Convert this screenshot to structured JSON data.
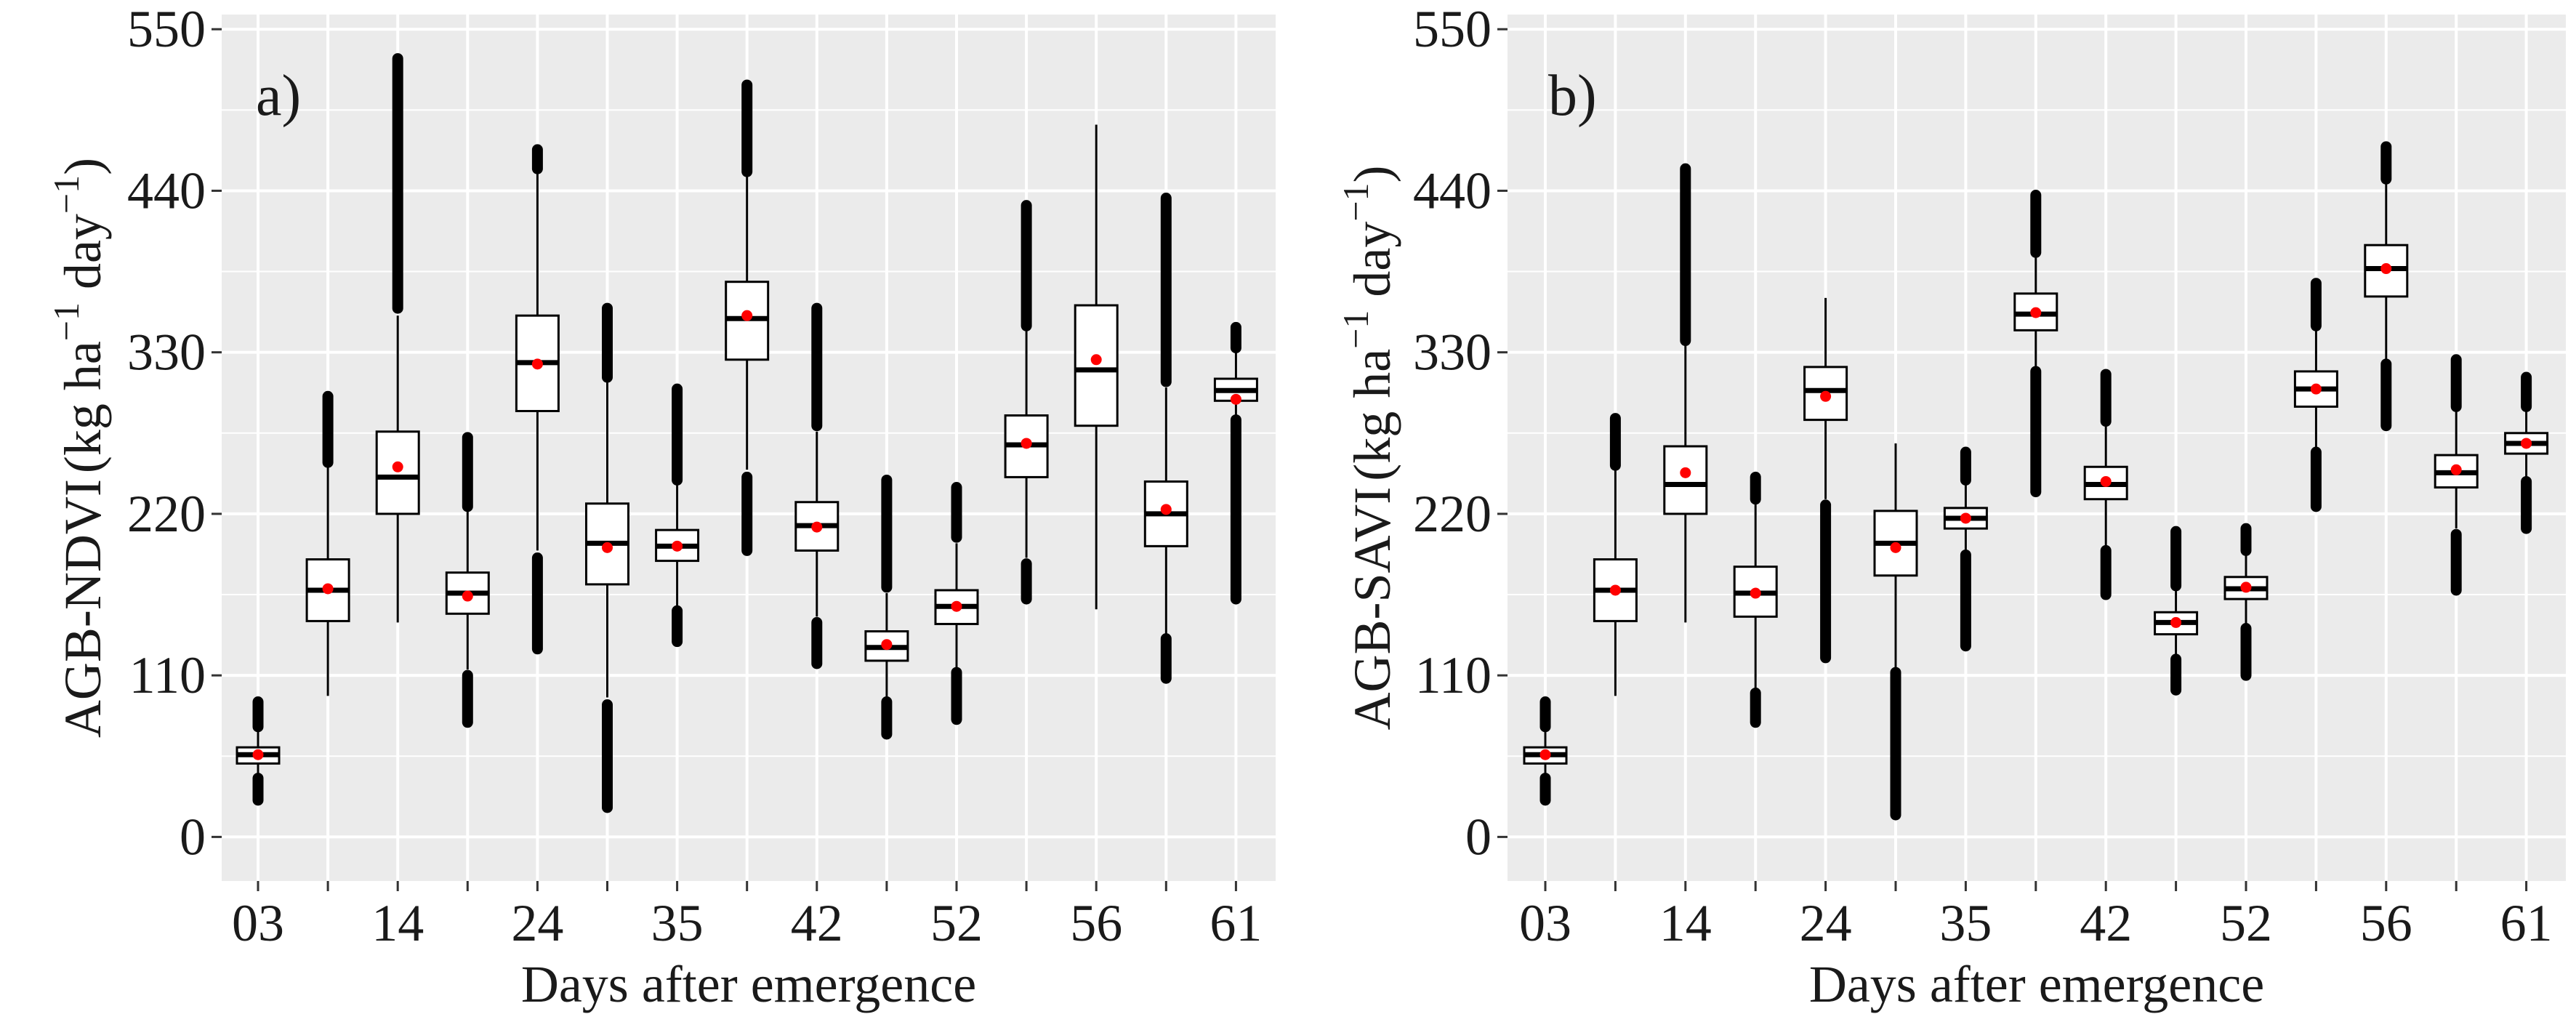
{
  "figure": {
    "xlabel": "Days after emergence",
    "ylabel_unit": {
      "open": "(kg ha",
      "sup1": "−1",
      "mid": " day",
      "sup2": "−1",
      "close": ")"
    }
  },
  "colors": {
    "panel_bg": "#ebebeb",
    "grid": "#ffffff",
    "box": "#000000",
    "mean_point": "#ff0000",
    "text": "#1a1a1a"
  },
  "chart_data": [
    {
      "type": "boxplot",
      "panel_label": "a)",
      "ylabel": "AGB-NDVI",
      "ylim": [
        -30,
        560
      ],
      "yticks": [
        0,
        110,
        220,
        330,
        440,
        550
      ],
      "xtick_labels": [
        "03",
        "",
        "14",
        "",
        "24",
        "",
        "35",
        "",
        "42",
        "",
        "52",
        "",
        "56",
        "",
        "61"
      ],
      "grid": true,
      "boxes": [
        {
          "q1": 50,
          "median": 56,
          "q3": 61,
          "whisker_low": 42,
          "whisker_high": 72,
          "mean": 56,
          "outliers_low": [
            25,
            40
          ],
          "outliers_high": [
            75,
            92
          ]
        },
        {
          "q1": 147,
          "median": 168,
          "q3": 189,
          "whisker_low": 96,
          "whisker_high": 252,
          "mean": 169,
          "outliers_low": [],
          "outliers_high": [
            255,
            300
          ]
        },
        {
          "q1": 220,
          "median": 245,
          "q3": 276,
          "whisker_low": 146,
          "whisker_high": 355,
          "mean": 252,
          "outliers_low": [],
          "outliers_high": [
            360,
            530
          ]
        },
        {
          "q1": 152,
          "median": 166,
          "q3": 180,
          "whisker_low": 114,
          "whisker_high": 222,
          "mean": 164,
          "outliers_low": [
            78,
            110
          ],
          "outliers_high": [
            225,
            272
          ]
        },
        {
          "q1": 290,
          "median": 323,
          "q3": 355,
          "whisker_low": 195,
          "whisker_high": 452,
          "mean": 322,
          "outliers_low": [
            128,
            190
          ],
          "outliers_high": [
            455,
            468
          ]
        },
        {
          "q1": 172,
          "median": 200,
          "q3": 227,
          "whisker_low": 95,
          "whisker_high": 310,
          "mean": 197,
          "outliers_low": [
            20,
            90
          ],
          "outliers_high": [
            313,
            360
          ]
        },
        {
          "q1": 188,
          "median": 198,
          "q3": 209,
          "whisker_low": 157,
          "whisker_high": 240,
          "mean": 198,
          "outliers_low": [
            133,
            154
          ],
          "outliers_high": [
            243,
            305
          ]
        },
        {
          "q1": 325,
          "median": 353,
          "q3": 378,
          "whisker_low": 250,
          "whisker_high": 450,
          "mean": 355,
          "outliers_low": [
            195,
            245
          ],
          "outliers_high": [
            453,
            512
          ]
        },
        {
          "q1": 195,
          "median": 212,
          "q3": 228,
          "whisker_low": 150,
          "whisker_high": 276,
          "mean": 211,
          "outliers_low": [
            118,
            146
          ],
          "outliers_high": [
            280,
            360
          ]
        },
        {
          "q1": 120,
          "median": 129,
          "q3": 140,
          "whisker_low": 95,
          "whisker_high": 166,
          "mean": 131,
          "outliers_low": [
            70,
            92
          ],
          "outliers_high": [
            170,
            243
          ]
        },
        {
          "q1": 145,
          "median": 157,
          "q3": 168,
          "whisker_low": 115,
          "whisker_high": 200,
          "mean": 157,
          "outliers_low": [
            80,
            112
          ],
          "outliers_high": [
            204,
            238
          ]
        },
        {
          "q1": 245,
          "median": 267,
          "q3": 287,
          "whisker_low": 190,
          "whisker_high": 345,
          "mean": 268,
          "outliers_low": [
            162,
            186
          ],
          "outliers_high": [
            348,
            430
          ]
        },
        {
          "q1": 280,
          "median": 318,
          "q3": 362,
          "whisker_low": 155,
          "whisker_high": 485,
          "mean": 325,
          "outliers_low": [],
          "outliers_high": []
        },
        {
          "q1": 198,
          "median": 220,
          "q3": 242,
          "whisker_low": 138,
          "whisker_high": 306,
          "mean": 223,
          "outliers_low": [
            108,
            135
          ],
          "outliers_high": [
            310,
            435
          ]
        },
        {
          "q1": 297,
          "median": 304,
          "q3": 312,
          "whisker_low": 287,
          "whisker_high": 330,
          "mean": 298,
          "outliers_low": [
            162,
            284
          ],
          "outliers_high": [
            333,
            347
          ]
        }
      ]
    },
    {
      "type": "boxplot",
      "panel_label": "b)",
      "ylabel": "AGB-SAVI",
      "ylim": [
        -30,
        560
      ],
      "yticks": [
        0,
        110,
        220,
        330,
        440,
        550
      ],
      "xtick_labels": [
        "03",
        "",
        "14",
        "",
        "24",
        "",
        "35",
        "",
        "42",
        "",
        "52",
        "",
        "56",
        "",
        "61"
      ],
      "grid": true,
      "boxes": [
        {
          "q1": 50,
          "median": 56,
          "q3": 61,
          "whisker_low": 42,
          "whisker_high": 72,
          "mean": 56,
          "outliers_low": [
            25,
            40
          ],
          "outliers_high": [
            75,
            92
          ]
        },
        {
          "q1": 147,
          "median": 168,
          "q3": 189,
          "whisker_low": 96,
          "whisker_high": 250,
          "mean": 168,
          "outliers_low": [],
          "outliers_high": [
            253,
            285
          ]
        },
        {
          "q1": 220,
          "median": 240,
          "q3": 266,
          "whisker_low": 146,
          "whisker_high": 335,
          "mean": 248,
          "outliers_low": [],
          "outliers_high": [
            338,
            455
          ]
        },
        {
          "q1": 150,
          "median": 166,
          "q3": 184,
          "whisker_low": 100,
          "whisker_high": 228,
          "mean": 166,
          "outliers_low": [
            78,
            98
          ],
          "outliers_high": [
            230,
            245
          ]
        },
        {
          "q1": 284,
          "median": 304,
          "q3": 320,
          "whisker_low": 230,
          "whisker_high": 367,
          "mean": 300,
          "outliers_low": [
            122,
            226
          ],
          "outliers_high": []
        },
        {
          "q1": 178,
          "median": 200,
          "q3": 222,
          "whisker_low": 115,
          "whisker_high": 268,
          "mean": 197,
          "outliers_low": [
            15,
            112
          ],
          "outliers_high": []
        },
        {
          "q1": 210,
          "median": 217,
          "q3": 224,
          "whisker_low": 195,
          "whisker_high": 240,
          "mean": 217,
          "outliers_low": [
            130,
            192
          ],
          "outliers_high": [
            243,
            262
          ]
        },
        {
          "q1": 345,
          "median": 356,
          "q3": 370,
          "whisker_low": 320,
          "whisker_high": 395,
          "mean": 357,
          "outliers_low": [
            235,
            317
          ],
          "outliers_high": [
            398,
            437
          ]
        },
        {
          "q1": 230,
          "median": 240,
          "q3": 252,
          "whisker_low": 198,
          "whisker_high": 280,
          "mean": 242,
          "outliers_low": [
            165,
            195
          ],
          "outliers_high": [
            283,
            315
          ]
        },
        {
          "q1": 138,
          "median": 146,
          "q3": 153,
          "whisker_low": 124,
          "whisker_high": 168,
          "mean": 146,
          "outliers_low": [
            100,
            121
          ],
          "outliers_high": [
            171,
            208
          ]
        },
        {
          "q1": 162,
          "median": 169,
          "q3": 177,
          "whisker_low": 145,
          "whisker_high": 192,
          "mean": 170,
          "outliers_low": [
            110,
            142
          ],
          "outliers_high": [
            195,
            210
          ]
        },
        {
          "q1": 293,
          "median": 305,
          "q3": 317,
          "whisker_low": 265,
          "whisker_high": 345,
          "mean": 305,
          "outliers_low": [
            225,
            262
          ],
          "outliers_high": [
            348,
            377
          ]
        },
        {
          "q1": 368,
          "median": 387,
          "q3": 403,
          "whisker_low": 325,
          "whisker_high": 445,
          "mean": 387,
          "outliers_low": [
            280,
            322
          ],
          "outliers_high": [
            448,
            470
          ]
        },
        {
          "q1": 238,
          "median": 248,
          "q3": 260,
          "whisker_low": 210,
          "whisker_high": 290,
          "mean": 250,
          "outliers_low": [
            168,
            206
          ],
          "outliers_high": [
            293,
            325
          ]
        },
        {
          "q1": 261,
          "median": 268,
          "q3": 275,
          "whisker_low": 245,
          "whisker_high": 290,
          "mean": 268,
          "outliers_low": [
            210,
            242
          ],
          "outliers_high": [
            293,
            313
          ]
        }
      ]
    }
  ]
}
